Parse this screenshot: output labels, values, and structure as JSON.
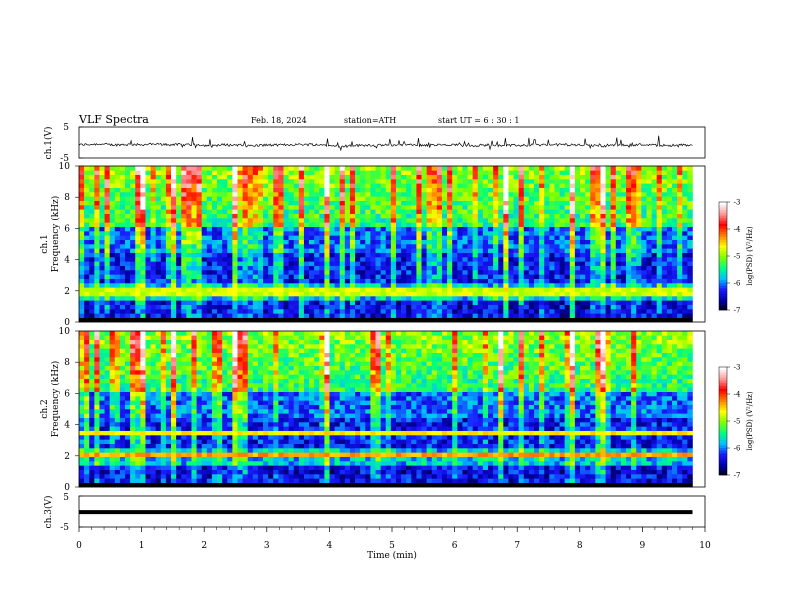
{
  "header": {
    "title": "VLF Spectra",
    "date": "Feb. 18, 2024",
    "station": "station=ATH",
    "start": "start  UT  =   6  : 30 : 1"
  },
  "colors": {
    "trace": "#000000",
    "colormap": [
      "#000000",
      "#0000aa",
      "#1a1aff",
      "#00bfff",
      "#00ff80",
      "#7fff00",
      "#ffff00",
      "#ff8000",
      "#ff0000",
      "#ff9999",
      "#ffffff"
    ]
  },
  "chart_data": {
    "type": "heatmap",
    "xlabel": "Time  (min)",
    "xlim": [
      0,
      10
    ],
    "xticks": [
      0,
      1,
      2,
      3,
      4,
      5,
      6,
      7,
      8,
      9,
      10
    ],
    "data_end_min": 9.8,
    "panels": [
      {
        "id": "ch1-voltage",
        "type": "line",
        "ylabel": "ch.1(V)",
        "ylim": [
          -5,
          5
        ],
        "yticks": [
          -5,
          5
        ],
        "baseline_v": -0.8
      },
      {
        "id": "ch1-spectrogram",
        "type": "heatmap",
        "ylabel_channel": "ch.1",
        "ylabel": "Frequency  (kHz)",
        "ylim": [
          0,
          10
        ],
        "yticks": [
          0,
          2,
          4,
          6,
          8,
          10
        ],
        "zlabel": "log(PSD) (V²/Hz)",
        "zlim": [
          -7,
          -3
        ],
        "zticks": [
          -3,
          -4,
          -5,
          -6,
          -7
        ],
        "features": [
          {
            "freq_khz": 2.1,
            "level": -5.0
          },
          {
            "freq_khz": 1.9,
            "level": -4.5
          }
        ],
        "strong_impulses_min": [
          1.0,
          1.5,
          2.45,
          3.95,
          4.0,
          6.8,
          7.9,
          8.35
        ]
      },
      {
        "id": "ch2-spectrogram",
        "type": "heatmap",
        "ylabel_channel": "ch.2",
        "ylabel": "Frequency  (kHz)",
        "ylim": [
          0,
          10
        ],
        "yticks": [
          0,
          2,
          4,
          6,
          8,
          10
        ],
        "zlabel": "log(PSD) (V²/Hz)",
        "zlim": [
          -7,
          -3
        ],
        "zticks": [
          -3,
          -4,
          -5,
          -6,
          -7
        ],
        "features": [
          {
            "freq_khz": 2.05,
            "level": -4.0
          },
          {
            "freq_khz": 3.5,
            "level": -4.3
          }
        ],
        "strong_impulses_min": [
          1.0,
          1.5,
          2.45,
          3.95,
          4.0,
          6.75,
          7.9,
          8.35
        ]
      },
      {
        "id": "ch3-voltage",
        "type": "line",
        "ylabel": "ch.3(V)",
        "ylim": [
          -5,
          5
        ],
        "yticks": [
          -5,
          5
        ],
        "baseline_v": -0.2
      }
    ]
  }
}
